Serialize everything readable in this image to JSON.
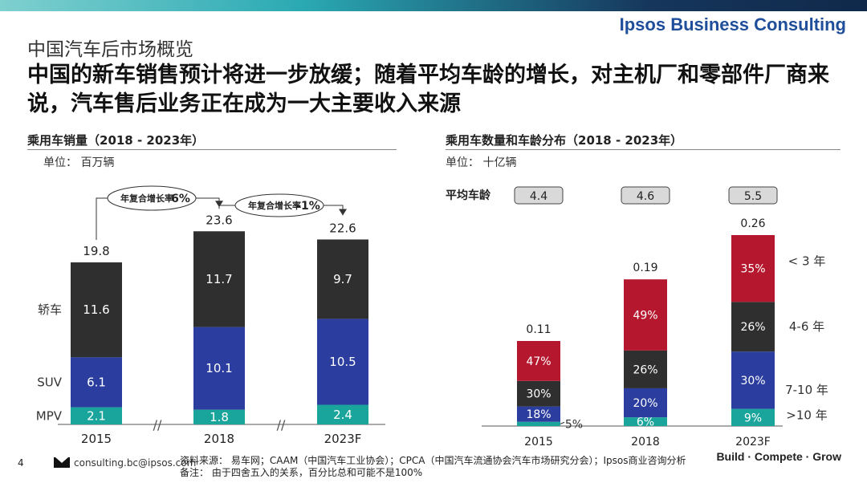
{
  "header": {
    "brand": "Ipsos Business Consulting",
    "subtitle": "中国汽车后市场概览",
    "headline": "中国的新车销售预计将进一步放缓；随着平均车龄的增长，对主机厂和零部件厂商来说，汽车售后业务正在成为一大主要收入来源"
  },
  "colors": {
    "sedan": "#2f2f2f",
    "suv": "#2b3e9f",
    "mpv": "#1aa59c",
    "red": "#b5182e",
    "accent": "#1f4e9b"
  },
  "chart_data": [
    {
      "type": "bar",
      "stacked": true,
      "title": "乘用车销量（2018 - 2023年）",
      "unit": "单位：  百万辆",
      "categories": [
        "2015",
        "2018",
        "2023F"
      ],
      "series": [
        {
          "name": "MPV",
          "values": [
            2.1,
            1.8,
            2.4
          ]
        },
        {
          "name": "SUV",
          "values": [
            6.1,
            10.1,
            10.5
          ]
        },
        {
          "name": "轿车",
          "values": [
            11.6,
            11.7,
            9.7
          ]
        }
      ],
      "totals": [
        19.8,
        23.6,
        22.6
      ],
      "cagr": [
        {
          "label": "年复合增长率",
          "value": "6%"
        },
        {
          "label": "年复合增长率",
          "value": "-1%"
        }
      ],
      "axis_break": "//"
    },
    {
      "type": "bar",
      "stacked": true,
      "normalized": true,
      "title": "乘用车数量和车龄分布（2018 - 2023年）",
      "unit": "单位：  十亿辆",
      "avg_age_label": "平均车龄",
      "avg_age": [
        "4.4",
        "4.6",
        "5.5"
      ],
      "categories": [
        "2015",
        "2018",
        "2023F"
      ],
      "totals": [
        "0.11",
        "0.19",
        "0.26"
      ],
      "series": [
        {
          "name": ">10 年",
          "values": [
            5,
            6,
            9
          ],
          "labels": [
            "5%",
            "6%",
            "9%"
          ]
        },
        {
          "name": "7-10 年",
          "values": [
            18,
            20,
            30
          ],
          "labels": [
            "18%",
            "20%",
            "30%"
          ]
        },
        {
          "name": "4-6 年",
          "values": [
            30,
            26,
            26
          ],
          "labels": [
            "30%",
            "26%",
            "26%"
          ]
        },
        {
          "name": "< 3 年",
          "values": [
            47,
            49,
            35
          ],
          "labels": [
            "47%",
            "49%",
            "35%"
          ]
        }
      ]
    }
  ],
  "footer": {
    "page": "4",
    "email": "consulting.bc@ipsos.com",
    "source": "资料来源：  易车网；CAAM（中国汽车工业协会）；CPCA（中国汽车流通协会汽车市场研究分会）；Ipsos商业咨询分析",
    "note": "备注：  由于四舍五入的关系，百分比总和可能不是100%",
    "tagline": "Build · Compete · Grow"
  }
}
